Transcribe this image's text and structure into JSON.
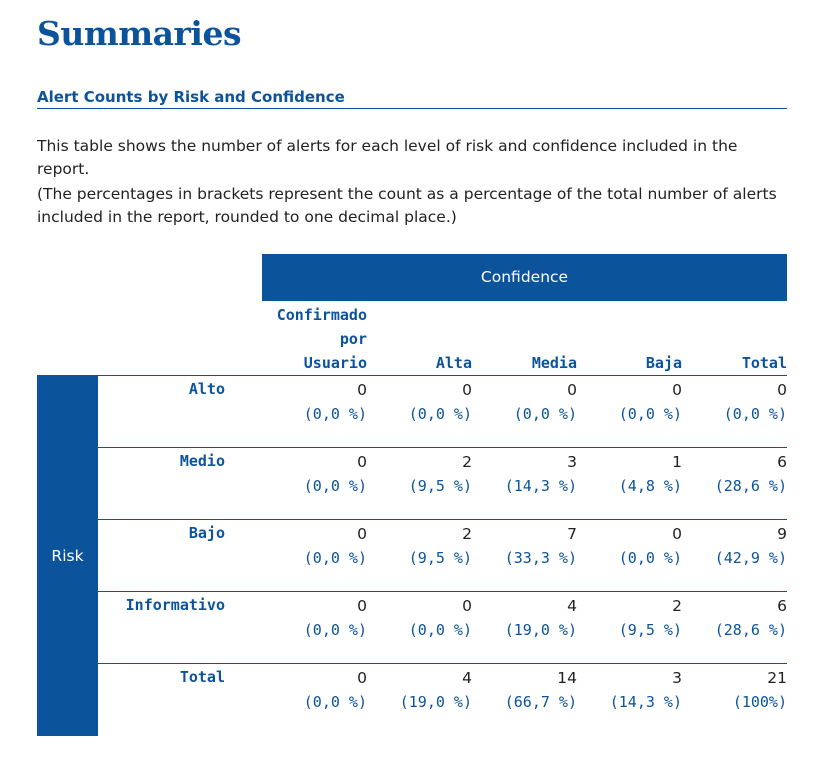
{
  "page_title": "Summaries",
  "section_heading": "Alert Counts by Risk and Confidence",
  "paragraphs": [
    "This table shows the number of alerts for each level of risk and confidence included in the report.",
    "(The percentages in brackets represent the count as a percentage of the total number of alerts included in the report, rounded to one decimal place.)"
  ],
  "table": {
    "confidence_header": "Confidence",
    "risk_header": "Risk",
    "columns": [
      {
        "lines": [
          "Confirmado",
          "por",
          "Usuario"
        ]
      },
      {
        "lines": [
          "Alta"
        ]
      },
      {
        "lines": [
          "Media"
        ]
      },
      {
        "lines": [
          "Baja"
        ]
      },
      {
        "lines": [
          "Total"
        ]
      }
    ],
    "rows": [
      {
        "label": "Alto",
        "cells": [
          {
            "count": "0",
            "pct": "(0,0 %)"
          },
          {
            "count": "0",
            "pct": "(0,0 %)"
          },
          {
            "count": "0",
            "pct": "(0,0 %)"
          },
          {
            "count": "0",
            "pct": "(0,0 %)"
          },
          {
            "count": "0",
            "pct": "(0,0 %)"
          }
        ]
      },
      {
        "label": "Medio",
        "cells": [
          {
            "count": "0",
            "pct": "(0,0 %)"
          },
          {
            "count": "2",
            "pct": "(9,5 %)"
          },
          {
            "count": "3",
            "pct": "(14,3 %)"
          },
          {
            "count": "1",
            "pct": "(4,8 %)"
          },
          {
            "count": "6",
            "pct": "(28,6 %)"
          }
        ]
      },
      {
        "label": "Bajo",
        "cells": [
          {
            "count": "0",
            "pct": "(0,0 %)"
          },
          {
            "count": "2",
            "pct": "(9,5 %)"
          },
          {
            "count": "7",
            "pct": "(33,3 %)"
          },
          {
            "count": "0",
            "pct": "(0,0 %)"
          },
          {
            "count": "9",
            "pct": "(42,9 %)"
          }
        ]
      },
      {
        "label": "Informativo",
        "cells": [
          {
            "count": "0",
            "pct": "(0,0 %)"
          },
          {
            "count": "0",
            "pct": "(0,0 %)"
          },
          {
            "count": "4",
            "pct": "(19,0 %)"
          },
          {
            "count": "2",
            "pct": "(9,5 %)"
          },
          {
            "count": "6",
            "pct": "(28,6 %)"
          }
        ]
      },
      {
        "label": "Total",
        "cells": [
          {
            "count": "0",
            "pct": "(0,0 %)"
          },
          {
            "count": "4",
            "pct": "(19,0 %)"
          },
          {
            "count": "14",
            "pct": "(66,7 %)"
          },
          {
            "count": "3",
            "pct": "(14,3 %)"
          },
          {
            "count": "21",
            "pct": "(100%)"
          }
        ]
      }
    ]
  }
}
